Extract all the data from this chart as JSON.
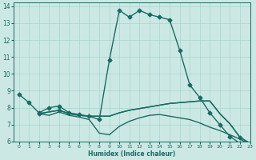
{
  "bg_color": "#cce8e4",
  "line_color": "#1a6b63",
  "grid_color": "#a8d4ce",
  "xlabel": "Humidex (Indice chaleur)",
  "xlim": [
    -0.5,
    23
  ],
  "ylim": [
    6,
    14.2
  ],
  "xticks": [
    0,
    1,
    2,
    3,
    4,
    5,
    6,
    7,
    8,
    9,
    10,
    11,
    12,
    13,
    14,
    15,
    16,
    17,
    18,
    19,
    20,
    21,
    22,
    23
  ],
  "yticks": [
    6,
    7,
    8,
    9,
    10,
    11,
    12,
    13,
    14
  ],
  "lines": [
    {
      "x": [
        0,
        1,
        2,
        3,
        4,
        5,
        6,
        7,
        8,
        9,
        10,
        11,
        12,
        13,
        14,
        15,
        16,
        17,
        18,
        19,
        20,
        21,
        22,
        23
      ],
      "y": [
        8.8,
        8.3,
        7.7,
        8.0,
        8.1,
        7.7,
        7.6,
        7.5,
        7.3,
        10.8,
        13.75,
        13.35,
        13.75,
        13.5,
        13.35,
        13.2,
        11.4,
        9.35,
        8.6,
        7.7,
        7.0,
        6.3,
        5.9,
        5.8
      ],
      "marker": "D",
      "markersize": 2.5,
      "linewidth": 1.0,
      "markevery": 1
    },
    {
      "x": [
        2,
        3,
        4,
        5,
        6,
        7,
        8,
        9,
        10,
        11,
        12,
        13,
        14,
        15,
        16,
        17,
        18,
        19,
        20,
        21,
        22,
        23
      ],
      "y": [
        7.65,
        7.75,
        7.85,
        7.65,
        7.55,
        7.5,
        7.5,
        7.5,
        7.7,
        7.85,
        7.95,
        8.05,
        8.15,
        8.25,
        8.3,
        8.35,
        8.4,
        8.4,
        7.65,
        7.05,
        6.25,
        5.9
      ],
      "marker": "D",
      "markersize": 2.5,
      "linewidth": 1.0,
      "markevery": [
        0,
        2,
        20
      ]
    },
    {
      "x": [
        2,
        3,
        4,
        5,
        6,
        7,
        8,
        9,
        10,
        11,
        12,
        13,
        14,
        15,
        16,
        17,
        18,
        19,
        20,
        21,
        22,
        23
      ],
      "y": [
        7.65,
        7.75,
        7.85,
        7.65,
        7.55,
        7.5,
        7.5,
        7.5,
        7.7,
        7.85,
        7.95,
        8.05,
        8.15,
        8.25,
        8.3,
        8.35,
        8.4,
        8.4,
        7.65,
        7.05,
        6.25,
        5.9
      ],
      "marker": null,
      "markersize": 0,
      "linewidth": 1.0,
      "markevery": 1
    },
    {
      "x": [
        2,
        3,
        4,
        5,
        6,
        7,
        8,
        9,
        10,
        11,
        12,
        13,
        14,
        15,
        16,
        17,
        18,
        19,
        20,
        21,
        22,
        23
      ],
      "y": [
        7.65,
        7.55,
        7.75,
        7.55,
        7.45,
        7.3,
        6.5,
        6.4,
        6.9,
        7.2,
        7.4,
        7.55,
        7.6,
        7.5,
        7.4,
        7.3,
        7.1,
        6.85,
        6.65,
        6.4,
        6.15,
        5.82
      ],
      "marker": null,
      "markersize": 0,
      "linewidth": 1.0,
      "markevery": 1
    }
  ]
}
